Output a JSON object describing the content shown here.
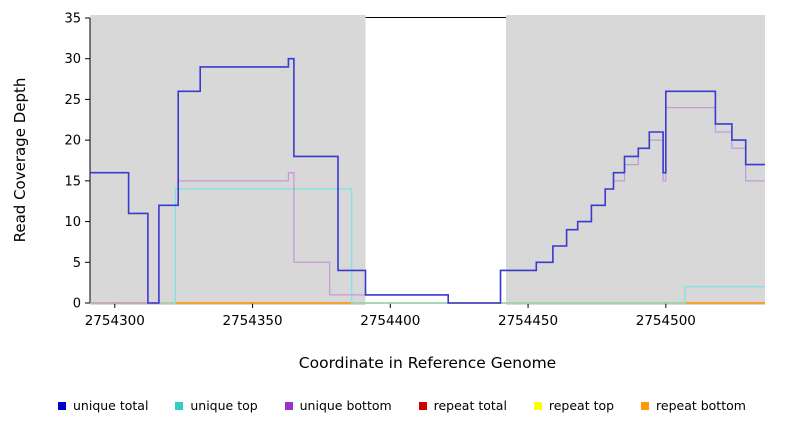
{
  "chart_data": {
    "type": "line",
    "subtype": "step",
    "title": "",
    "xlabel": "Coordinate in Reference Genome",
    "ylabel": "Read Coverage Depth",
    "xlim": [
      2754291,
      2754536
    ],
    "ylim": [
      0,
      35
    ],
    "xticks": [
      2754300,
      2754350,
      2754400,
      2754450,
      2754500
    ],
    "yticks": [
      0,
      5,
      10,
      15,
      20,
      25,
      30,
      35
    ],
    "grid": false,
    "legend_position": "bottom",
    "background_regions": [
      {
        "x0": 2754291,
        "x1": 2754391,
        "color": "#d8d8d8"
      },
      {
        "x0": 2754442,
        "x1": 2754536,
        "color": "#d8d8d8"
      }
    ],
    "series": [
      {
        "name": "repeat total",
        "color": "#cc0000",
        "steps": [
          [
            2754291,
            0
          ]
        ]
      },
      {
        "name": "repeat top",
        "color": "#ffff00",
        "steps": [
          [
            2754291,
            0
          ]
        ]
      },
      {
        "name": "repeat bottom",
        "color": "#ff9900",
        "steps": [
          [
            2754303,
            0
          ]
        ]
      },
      {
        "name": "unique top",
        "color": "#7fe3e3",
        "steps": [
          [
            2754291,
            0
          ],
          [
            2754322,
            14
          ],
          [
            2754386,
            0
          ],
          [
            2754507,
            2
          ]
        ]
      },
      {
        "name": "unique bottom",
        "color": "#c39ad6",
        "steps": [
          [
            2754291,
            0
          ],
          [
            2754316,
            12
          ],
          [
            2754323,
            15
          ],
          [
            2754363,
            16
          ],
          [
            2754365,
            5
          ],
          [
            2754378,
            1
          ],
          [
            2754421,
            0
          ],
          [
            2754440,
            4
          ],
          [
            2754453,
            5
          ],
          [
            2754459,
            7
          ],
          [
            2754464,
            9
          ],
          [
            2754468,
            10
          ],
          [
            2754473,
            12
          ],
          [
            2754478,
            14
          ],
          [
            2754481,
            15
          ],
          [
            2754485,
            17
          ],
          [
            2754490,
            19
          ],
          [
            2754494,
            20
          ],
          [
            2754499,
            15
          ],
          [
            2754500,
            24
          ],
          [
            2754518,
            21
          ],
          [
            2754524,
            19
          ],
          [
            2754529,
            15
          ]
        ]
      },
      {
        "name": "unique total",
        "color": "#3a3ad0",
        "line_width": 1.6,
        "steps": [
          [
            2754291,
            16
          ],
          [
            2754305,
            11
          ],
          [
            2754312,
            0
          ],
          [
            2754316,
            12
          ],
          [
            2754323,
            26
          ],
          [
            2754331,
            29
          ],
          [
            2754363,
            30
          ],
          [
            2754365,
            18
          ],
          [
            2754381,
            4
          ],
          [
            2754391,
            1
          ],
          [
            2754421,
            0
          ],
          [
            2754440,
            4
          ],
          [
            2754453,
            5
          ],
          [
            2754459,
            7
          ],
          [
            2754464,
            9
          ],
          [
            2754468,
            10
          ],
          [
            2754473,
            12
          ],
          [
            2754478,
            14
          ],
          [
            2754481,
            16
          ],
          [
            2754485,
            18
          ],
          [
            2754490,
            19
          ],
          [
            2754494,
            21
          ],
          [
            2754499,
            16
          ],
          [
            2754500,
            26
          ],
          [
            2754518,
            22
          ],
          [
            2754524,
            20
          ],
          [
            2754529,
            17
          ]
        ]
      }
    ]
  },
  "legend": {
    "items": [
      {
        "label": "unique total",
        "color": "#0000cc"
      },
      {
        "label": "unique top",
        "color": "#33cccc"
      },
      {
        "label": "unique bottom",
        "color": "#9933cc"
      },
      {
        "label": "repeat total",
        "color": "#cc0000"
      },
      {
        "label": "repeat top",
        "color": "#ffff00"
      },
      {
        "label": "repeat bottom",
        "color": "#ff9900"
      }
    ]
  }
}
